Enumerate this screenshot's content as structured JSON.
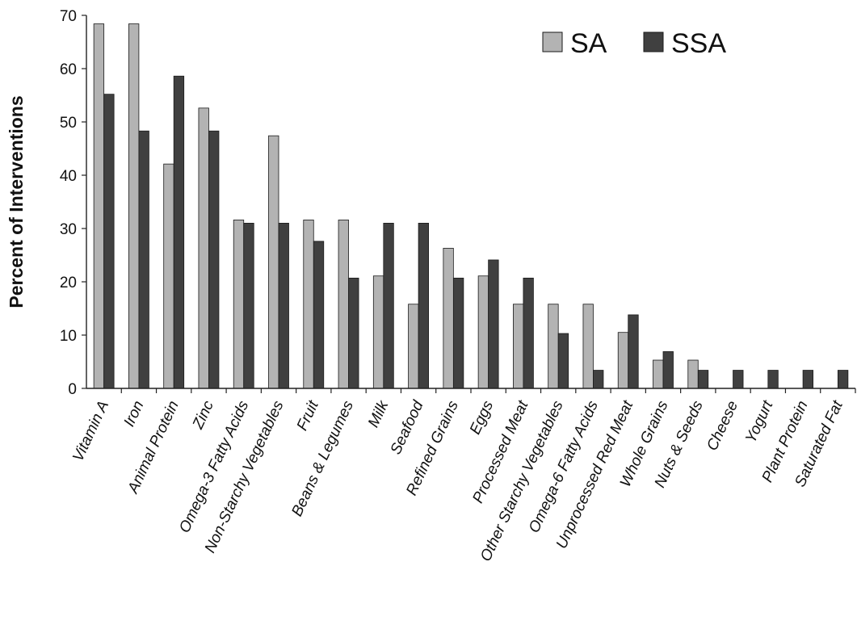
{
  "chart_data": {
    "type": "bar",
    "title": "",
    "xlabel": "",
    "ylabel": "Percent of Interventions",
    "ylim": [
      0,
      70
    ],
    "yticks": [
      0,
      10,
      20,
      30,
      40,
      50,
      60,
      70
    ],
    "grid": false,
    "legend_position": "top-right",
    "categories": [
      "Vitamin A",
      "Iron",
      "Animal Protein",
      "Zinc",
      "Omega-3 Fatty Acids",
      "Non-Starchy Vegetables",
      "Fruit",
      "Beans & Legumes",
      "Milk",
      "Seafood",
      "Refined Grains",
      "Eggs",
      "Processed Meat",
      "Other Starchy Vegetables",
      "Omega-6 Fatty Acids",
      "Unprocessed Red Meat",
      "Whole Grains",
      "Nuts & Seeds",
      "Cheese",
      "Yogurt",
      "Plant Protein",
      "Saturated Fat"
    ],
    "series": [
      {
        "name": "SA",
        "color": "#b3b3b3",
        "values": [
          68.4,
          68.4,
          42.1,
          52.6,
          31.6,
          47.4,
          31.6,
          31.6,
          21.1,
          15.8,
          26.3,
          21.1,
          15.8,
          15.8,
          15.8,
          10.5,
          5.3,
          5.3,
          0,
          0,
          0,
          0
        ]
      },
      {
        "name": "SSA",
        "color": "#404040",
        "values": [
          55.2,
          48.3,
          58.6,
          48.3,
          31.0,
          31.0,
          27.6,
          20.7,
          31.0,
          31.0,
          20.7,
          24.1,
          20.7,
          10.3,
          3.4,
          13.8,
          6.9,
          3.4,
          3.4,
          3.4,
          3.4,
          3.4
        ]
      }
    ]
  }
}
